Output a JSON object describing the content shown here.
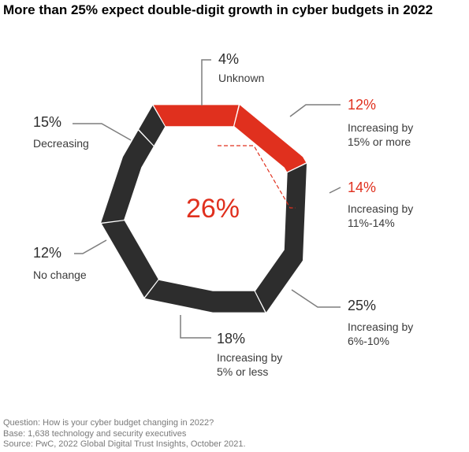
{
  "title": "More than 25% expect double-digit growth in cyber budgets in 2022",
  "center_label": "26%",
  "notes": {
    "question": "Question: How is your cyber budget changing in 2022?",
    "base": "Base: 1,638 technology and security executives",
    "source": "Source: PwC, 2022 Global Digital Trust Insights, October 2021."
  },
  "colors": {
    "highlight": "#e0301e",
    "dark": "#2d2d2d",
    "leader": "#7d7d7d"
  },
  "chart_data": {
    "type": "pie",
    "shape": "hexagon-donut",
    "start": "top, clockwise",
    "segments": [
      {
        "value": 12,
        "value_label": "12%",
        "label": [
          "Increasing by",
          "15% or more"
        ],
        "highlight": true
      },
      {
        "value": 14,
        "value_label": "14%",
        "label": [
          "Increasing by",
          "11%-14%"
        ],
        "highlight": true
      },
      {
        "value": 25,
        "value_label": "25%",
        "label": [
          "Increasing by",
          "6%-10%"
        ],
        "highlight": false
      },
      {
        "value": 18,
        "value_label": "18%",
        "label": [
          "Increasing by",
          "5% or less"
        ],
        "highlight": false
      },
      {
        "value": 12,
        "value_label": "12%",
        "label": [
          "No change"
        ],
        "highlight": false
      },
      {
        "value": 15,
        "value_label": "15%",
        "label": [
          "Decreasing"
        ],
        "highlight": false
      },
      {
        "value": 4,
        "value_label": "4%",
        "label": [
          "Unknown"
        ],
        "highlight": false
      }
    ]
  }
}
